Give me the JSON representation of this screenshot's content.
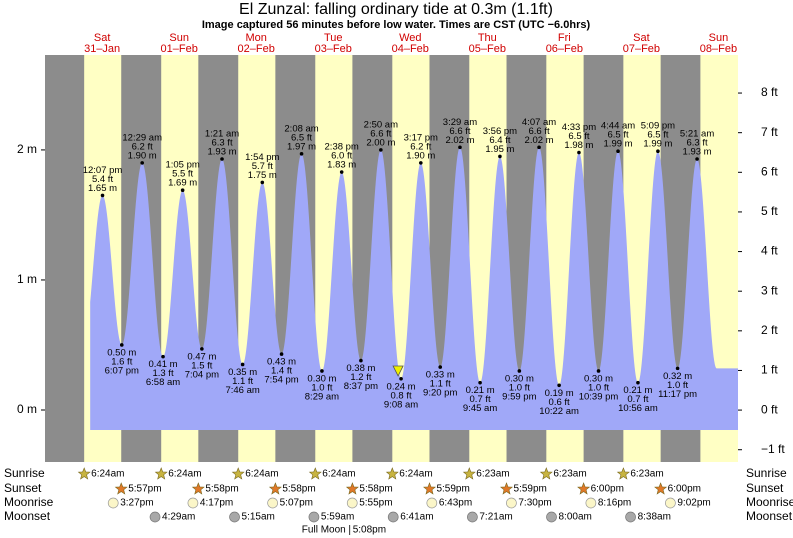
{
  "chart_data": {
    "type": "area",
    "title": "El Zunzal: falling  ordinary tide at 0.3m (1.1ft)",
    "subtitle": "Image captured 56 minutes before low water. Times are CST (UTC −6.0hrs)",
    "days": [
      "Sat",
      "Sun",
      "Mon",
      "Tue",
      "Wed",
      "Thu",
      "Fri",
      "Sat",
      "Sun"
    ],
    "dates": [
      "31–Jan",
      "01–Feb",
      "02–Feb",
      "03–Feb",
      "04–Feb",
      "05–Feb",
      "06–Feb",
      "07–Feb",
      "08–Feb"
    ],
    "xlim": [
      -5.8,
      210.1
    ],
    "x": [
      12.12,
      18.12,
      24.48,
      30.97,
      37.08,
      43.07,
      49.35,
      55.77,
      61.9,
      67.9,
      74.13,
      80.48,
      86.63,
      92.62,
      98.83,
      105.13,
      111.28,
      117.33,
      123.48,
      129.75,
      135.93,
      141.98,
      148.12,
      154.37,
      160.55,
      166.65,
      172.73,
      178.93,
      185.15,
      191.28,
      197.35
    ],
    "values": [
      1.65,
      0.5,
      1.9,
      0.41,
      1.69,
      0.47,
      1.93,
      0.35,
      1.75,
      0.43,
      1.97,
      0.3,
      1.83,
      0.38,
      2.0,
      0.24,
      1.9,
      0.33,
      2.02,
      0.21,
      1.95,
      0.3,
      2.02,
      0.19,
      1.98,
      0.3,
      1.99,
      0.21,
      1.99,
      0.32,
      1.93
    ],
    "value_labels": [
      "1.65 m",
      "0.50 m",
      "1.90 m",
      "0.41 m",
      "1.69 m",
      "0.47 m",
      "1.93 m",
      "0.35 m",
      "1.75 m",
      "0.43 m",
      "1.97 m",
      "0.30 m",
      "1.83 m",
      "0.38 m",
      "2.00 m",
      "0.24 m",
      "1.90 m",
      "0.33 m",
      "2.02 m",
      "0.21 m",
      "1.95 m",
      "0.30 m",
      "2.02 m",
      "0.19 m",
      "1.98 m",
      "0.30 m",
      "1.99 m",
      "0.21 m",
      "1.99 m",
      "0.32 m",
      "1.93 m"
    ],
    "ft_labels": [
      "5.4 ft",
      "1.6 ft",
      "6.2 ft",
      "1.3 ft",
      "5.5 ft",
      "1.5 ft",
      "6.3 ft",
      "1.1 ft",
      "5.7 ft",
      "1.4 ft",
      "6.5 ft",
      "1.0 ft",
      "6.0 ft",
      "1.2 ft",
      "6.6 ft",
      "0.8 ft",
      "6.2 ft",
      "1.1 ft",
      "6.6 ft",
      "0.7 ft",
      "6.4 ft",
      "1.0 ft",
      "6.6 ft",
      "0.6 ft",
      "6.5 ft",
      "1.0 ft",
      "6.5 ft",
      "0.7 ft",
      "6.5 ft",
      "1.0 ft",
      "6.3 ft"
    ],
    "time_labels": [
      "12:07 pm",
      "6:07 pm",
      "12:29 am",
      "6:58 am",
      "1:05 pm",
      "7:04 pm",
      "1:21 am",
      "7:46 am",
      "1:54 pm",
      "7:54 pm",
      "2:08 am",
      "8:29 am",
      "2:38 pm",
      "8:37 pm",
      "2:50 am",
      "9:08 am",
      "3:17 pm",
      "9:20 pm",
      "3:29 am",
      "9:45 am",
      "3:56 pm",
      "9:59 pm",
      "4:07 am",
      "10:22 am",
      "4:33 pm",
      "10:39 pm",
      "4:44 am",
      "10:56 am",
      "5:09 pm",
      "11:17 pm",
      "5:21 am"
    ],
    "color": "#a0a8f8",
    "ylim": [
      -0.4,
      2.73
    ],
    "yticks": [
      {
        "value": 0,
        "label": "0 m"
      },
      {
        "value": 1,
        "label": "1 m"
      },
      {
        "value": 2,
        "label": "2 m"
      }
    ],
    "y2lim": [
      -1.31,
      8.96
    ],
    "y2ticks": [
      {
        "value": -1,
        "label": "−1 ft"
      },
      {
        "value": 0,
        "label": "0 ft"
      },
      {
        "value": 1,
        "label": "1 ft"
      },
      {
        "value": 2,
        "label": "2 ft"
      },
      {
        "value": 3,
        "label": "3 ft"
      },
      {
        "value": 4,
        "label": "4 ft"
      },
      {
        "value": 5,
        "label": "5 ft"
      },
      {
        "value": 6,
        "label": "6 ft"
      },
      {
        "value": 7,
        "label": "7 ft"
      },
      {
        "value": 8,
        "label": "8 ft"
      }
    ],
    "now": {
      "x": 104.2,
      "value": 0.3
    },
    "row_labels": [
      "Sunrise",
      "Sunset",
      "Moonrise",
      "Moonset"
    ],
    "sunrise": [
      "6:24am",
      "6:24am",
      "6:24am",
      "6:24am",
      "6:24am",
      "6:23am",
      "6:23am",
      "6:23am"
    ],
    "sunset": [
      "5:57pm",
      "5:58pm",
      "5:58pm",
      "5:58pm",
      "5:59pm",
      "5:59pm",
      "6:00pm",
      "6:00pm"
    ],
    "moonrise": [
      "3:27pm",
      "4:17pm",
      "5:07pm",
      "5:55pm",
      "6:43pm",
      "7:30pm",
      "8:16pm",
      "9:02pm"
    ],
    "moonset": [
      "4:29am",
      "5:15am",
      "5:59am",
      "6:41am",
      "7:21am",
      "8:00am",
      "8:38am"
    ],
    "full_moon": {
      "label": "Full Moon",
      "time": "5:08pm",
      "x": 89.13
    }
  }
}
